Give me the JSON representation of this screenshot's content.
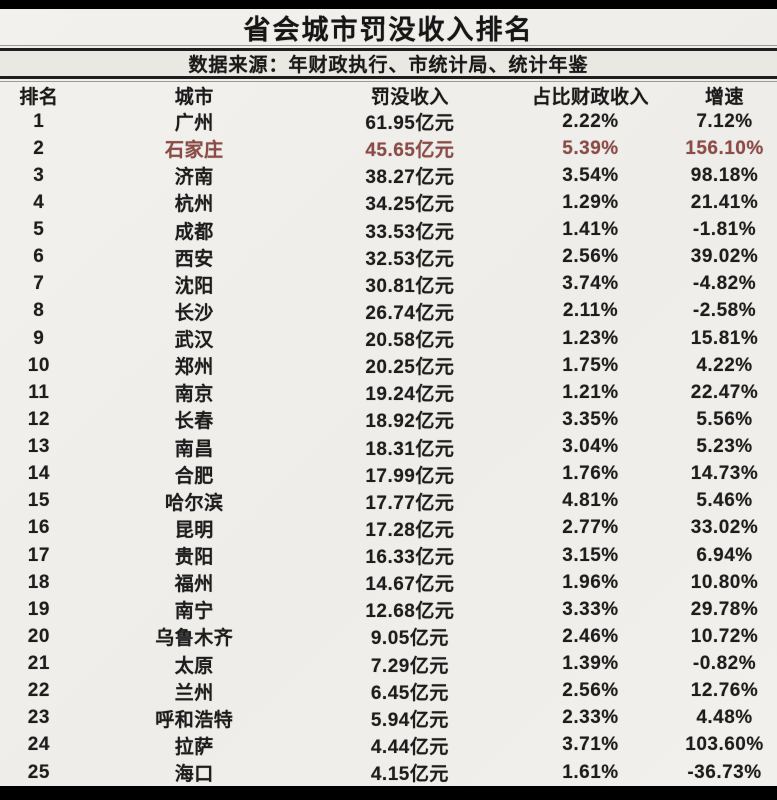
{
  "title": "省会城市罚没收入排名",
  "source_note": "数据来源：年财政执行、市统计局、统计年鉴",
  "colors": {
    "highlight": "#8e4a45",
    "text": "#1d1d1d",
    "background": "#f1efeb",
    "source_band": "#eae8e3",
    "rule": "#1e1e1e",
    "letterbox": "#000000"
  },
  "chart_data": {
    "type": "table",
    "title": "省会城市罚没收入排名",
    "source": "数据来源：年财政执行、市统计局、统计年鉴",
    "columns": [
      "排名",
      "城市",
      "罚没收入",
      "占比财政收入",
      "增速"
    ],
    "revenue_unit": "亿元",
    "highlighted_city": "石家庄",
    "rows": [
      {
        "rank": 1,
        "city": "广州",
        "revenue": "61.95亿元",
        "revenue_yi": 61.95,
        "pct_of_fiscal": "2.22%",
        "growth": "7.12%",
        "highlight": false
      },
      {
        "rank": 2,
        "city": "石家庄",
        "revenue": "45.65亿元",
        "revenue_yi": 45.65,
        "pct_of_fiscal": "5.39%",
        "growth": "156.10%",
        "highlight": true
      },
      {
        "rank": 3,
        "city": "济南",
        "revenue": "38.27亿元",
        "revenue_yi": 38.27,
        "pct_of_fiscal": "3.54%",
        "growth": "98.18%",
        "highlight": false
      },
      {
        "rank": 4,
        "city": "杭州",
        "revenue": "34.25亿元",
        "revenue_yi": 34.25,
        "pct_of_fiscal": "1.29%",
        "growth": "21.41%",
        "highlight": false
      },
      {
        "rank": 5,
        "city": "成都",
        "revenue": "33.53亿元",
        "revenue_yi": 33.53,
        "pct_of_fiscal": "1.41%",
        "growth": "-1.81%",
        "highlight": false
      },
      {
        "rank": 6,
        "city": "西安",
        "revenue": "32.53亿元",
        "revenue_yi": 32.53,
        "pct_of_fiscal": "2.56%",
        "growth": "39.02%",
        "highlight": false
      },
      {
        "rank": 7,
        "city": "沈阳",
        "revenue": "30.81亿元",
        "revenue_yi": 30.81,
        "pct_of_fiscal": "3.74%",
        "growth": "-4.82%",
        "highlight": false
      },
      {
        "rank": 8,
        "city": "长沙",
        "revenue": "26.74亿元",
        "revenue_yi": 26.74,
        "pct_of_fiscal": "2.11%",
        "growth": "-2.58%",
        "highlight": false
      },
      {
        "rank": 9,
        "city": "武汉",
        "revenue": "20.58亿元",
        "revenue_yi": 20.58,
        "pct_of_fiscal": "1.23%",
        "growth": "15.81%",
        "highlight": false
      },
      {
        "rank": 10,
        "city": "郑州",
        "revenue": "20.25亿元",
        "revenue_yi": 20.25,
        "pct_of_fiscal": "1.75%",
        "growth": "4.22%",
        "highlight": false
      },
      {
        "rank": 11,
        "city": "南京",
        "revenue": "19.24亿元",
        "revenue_yi": 19.24,
        "pct_of_fiscal": "1.21%",
        "growth": "22.47%",
        "highlight": false
      },
      {
        "rank": 12,
        "city": "长春",
        "revenue": "18.92亿元",
        "revenue_yi": 18.92,
        "pct_of_fiscal": "3.35%",
        "growth": "5.56%",
        "highlight": false
      },
      {
        "rank": 13,
        "city": "南昌",
        "revenue": "18.31亿元",
        "revenue_yi": 18.31,
        "pct_of_fiscal": "3.04%",
        "growth": "5.23%",
        "highlight": false
      },
      {
        "rank": 14,
        "city": "合肥",
        "revenue": "17.99亿元",
        "revenue_yi": 17.99,
        "pct_of_fiscal": "1.76%",
        "growth": "14.73%",
        "highlight": false
      },
      {
        "rank": 15,
        "city": "哈尔滨",
        "revenue": "17.77亿元",
        "revenue_yi": 17.77,
        "pct_of_fiscal": "4.81%",
        "growth": "5.46%",
        "highlight": false
      },
      {
        "rank": 16,
        "city": "昆明",
        "revenue": "17.28亿元",
        "revenue_yi": 17.28,
        "pct_of_fiscal": "2.77%",
        "growth": "33.02%",
        "highlight": false
      },
      {
        "rank": 17,
        "city": "贵阳",
        "revenue": "16.33亿元",
        "revenue_yi": 16.33,
        "pct_of_fiscal": "3.15%",
        "growth": "6.94%",
        "highlight": false
      },
      {
        "rank": 18,
        "city": "福州",
        "revenue": "14.67亿元",
        "revenue_yi": 14.67,
        "pct_of_fiscal": "1.96%",
        "growth": "10.80%",
        "highlight": false
      },
      {
        "rank": 19,
        "city": "南宁",
        "revenue": "12.68亿元",
        "revenue_yi": 12.68,
        "pct_of_fiscal": "3.33%",
        "growth": "29.78%",
        "highlight": false
      },
      {
        "rank": 20,
        "city": "乌鲁木齐",
        "revenue": "9.05亿元",
        "revenue_yi": 9.05,
        "pct_of_fiscal": "2.46%",
        "growth": "10.72%",
        "highlight": false
      },
      {
        "rank": 21,
        "city": "太原",
        "revenue": "7.29亿元",
        "revenue_yi": 7.29,
        "pct_of_fiscal": "1.39%",
        "growth": "-0.82%",
        "highlight": false
      },
      {
        "rank": 22,
        "city": "兰州",
        "revenue": "6.45亿元",
        "revenue_yi": 6.45,
        "pct_of_fiscal": "2.56%",
        "growth": "12.76%",
        "highlight": false
      },
      {
        "rank": 23,
        "city": "呼和浩特",
        "revenue": "5.94亿元",
        "revenue_yi": 5.94,
        "pct_of_fiscal": "2.33%",
        "growth": "4.48%",
        "highlight": false
      },
      {
        "rank": 24,
        "city": "拉萨",
        "revenue": "4.44亿元",
        "revenue_yi": 4.44,
        "pct_of_fiscal": "3.71%",
        "growth": "103.60%",
        "highlight": false
      },
      {
        "rank": 25,
        "city": "海口",
        "revenue": "4.15亿元",
        "revenue_yi": 4.15,
        "pct_of_fiscal": "1.61%",
        "growth": "-36.73%",
        "highlight": false
      }
    ]
  }
}
